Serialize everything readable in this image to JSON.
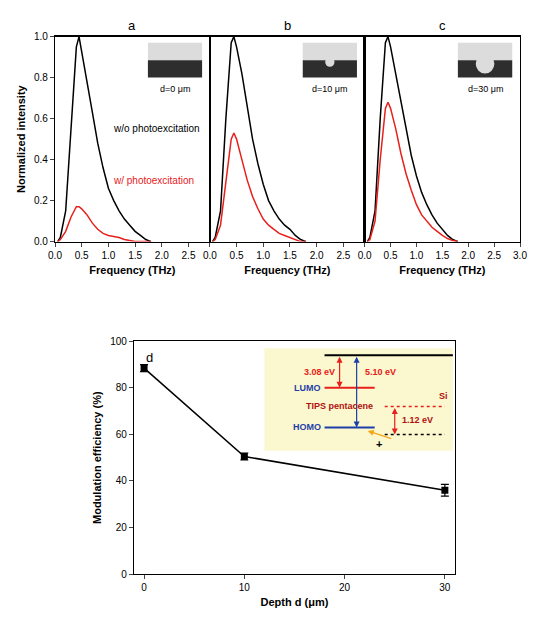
{
  "chart_data": [
    {
      "type": "line",
      "title": "a",
      "x_label": "Frequency (THz)",
      "y_label": "Normalized intensity",
      "x": [
        0.05,
        0.1,
        0.2,
        0.3,
        0.4,
        0.45,
        0.5,
        0.6,
        0.7,
        0.8,
        0.9,
        1.0,
        1.1,
        1.2,
        1.3,
        1.4,
        1.5,
        1.6,
        1.7,
        1.8
      ],
      "series": [
        {
          "name": "w/o photoexcitation",
          "color": "#000000",
          "values": [
            0,
            0.02,
            0.15,
            0.55,
            0.95,
            1.0,
            0.93,
            0.78,
            0.63,
            0.48,
            0.36,
            0.26,
            0.2,
            0.15,
            0.11,
            0.08,
            0.05,
            0.03,
            0.01,
            0
          ]
        },
        {
          "name": "w/ photoexcitation",
          "color": "#e8201c",
          "values": [
            0,
            0.01,
            0.05,
            0.12,
            0.17,
            0.17,
            0.16,
            0.13,
            0.09,
            0.06,
            0.04,
            0.03,
            0.025,
            0.02,
            0.01,
            0.005,
            0,
            0,
            0,
            0
          ]
        }
      ],
      "annotations": [
        "d=0 μm"
      ],
      "xlim": [
        0,
        2.9
      ],
      "xticks": [
        {
          "value": 0,
          "label": "0.0"
        },
        0.5,
        {
          "value": 1,
          "label": "1.0"
        },
        1.5,
        {
          "value": 2,
          "label": "2.0"
        },
        2.5
      ],
      "ylim": [
        0,
        1
      ],
      "yticks": [
        {
          "value": 0,
          "label": "0.0"
        },
        0.2,
        0.4,
        0.6,
        0.8,
        {
          "value": 1,
          "label": "1.0"
        }
      ],
      "grid": false
    },
    {
      "type": "line",
      "title": "b",
      "x_label": "Frequency (THz)",
      "x": [
        0.05,
        0.1,
        0.2,
        0.3,
        0.4,
        0.45,
        0.5,
        0.6,
        0.7,
        0.8,
        0.9,
        1.0,
        1.1,
        1.2,
        1.3,
        1.4,
        1.5,
        1.6,
        1.7,
        1.8
      ],
      "series": [
        {
          "color": "#000000",
          "values": [
            0,
            0.02,
            0.15,
            0.6,
            0.97,
            1.0,
            0.95,
            0.82,
            0.66,
            0.5,
            0.38,
            0.28,
            0.2,
            0.15,
            0.11,
            0.08,
            0.06,
            0.03,
            0.01,
            0
          ]
        },
        {
          "color": "#e8201c",
          "values": [
            0,
            0.01,
            0.08,
            0.3,
            0.5,
            0.53,
            0.5,
            0.4,
            0.3,
            0.22,
            0.16,
            0.11,
            0.08,
            0.06,
            0.04,
            0.03,
            0.02,
            0.01,
            0,
            0
          ]
        }
      ],
      "annotations": [
        "d=10 μm"
      ],
      "xlim": [
        0,
        2.9
      ],
      "xticks": [
        {
          "value": 0,
          "label": "0.0"
        },
        0.5,
        {
          "value": 1,
          "label": "1.0"
        },
        1.5,
        {
          "value": 2,
          "label": "2.0"
        },
        2.5
      ],
      "ylim": [
        0,
        1
      ],
      "tick_labels": "x",
      "grid": false
    },
    {
      "type": "line",
      "title": "c",
      "x_label": "Frequency (THz)",
      "x": [
        0.05,
        0.1,
        0.2,
        0.3,
        0.4,
        0.45,
        0.5,
        0.6,
        0.7,
        0.8,
        0.9,
        1.0,
        1.1,
        1.2,
        1.3,
        1.4,
        1.5,
        1.6,
        1.7,
        1.8
      ],
      "series": [
        {
          "color": "#000000",
          "values": [
            0,
            0.02,
            0.15,
            0.6,
            0.97,
            1.0,
            0.95,
            0.82,
            0.68,
            0.55,
            0.42,
            0.32,
            0.24,
            0.18,
            0.13,
            0.09,
            0.06,
            0.03,
            0.01,
            0
          ]
        },
        {
          "color": "#e8201c",
          "values": [
            0,
            0.01,
            0.1,
            0.4,
            0.65,
            0.68,
            0.65,
            0.55,
            0.43,
            0.33,
            0.25,
            0.18,
            0.13,
            0.1,
            0.07,
            0.05,
            0.03,
            0.015,
            0.005,
            0
          ]
        }
      ],
      "annotations": [
        "d=30 μm"
      ],
      "xlim": [
        0,
        3.0
      ],
      "xticks": [
        {
          "value": 0,
          "label": "0.0"
        },
        0.5,
        {
          "value": 1,
          "label": "1.0"
        },
        1.5,
        {
          "value": 2,
          "label": "2.0"
        },
        2.5,
        {
          "value": 3,
          "label": "3.0"
        }
      ],
      "ylim": [
        0,
        1
      ],
      "tick_labels": "x",
      "grid": false
    },
    {
      "type": "line",
      "title": "d",
      "x_label": "Depth d (μm)",
      "y_label": "Modulation efficiency (%)",
      "x": [
        0,
        10,
        30
      ],
      "values": [
        88.5,
        50.5,
        36
      ],
      "errors": [
        1.5,
        1.5,
        2.5
      ],
      "color": "#000000",
      "marker": "square",
      "line_style": "solid",
      "xlim": [
        -1,
        31
      ],
      "xticks": [
        0,
        10,
        20,
        30
      ],
      "ylim": [
        0,
        100
      ],
      "yticks": [
        0,
        20,
        40,
        60,
        80,
        100
      ],
      "grid": false,
      "energy_diagram": {
        "lumo_gap": "3.08 eV",
        "homo_gap": "5.10 eV",
        "lumo": "LUMO",
        "material": "TIPS pentacene",
        "homo": "HOMO",
        "substrate": "Si",
        "band_gap": "1.12 eV",
        "hole": "+"
      }
    }
  ]
}
